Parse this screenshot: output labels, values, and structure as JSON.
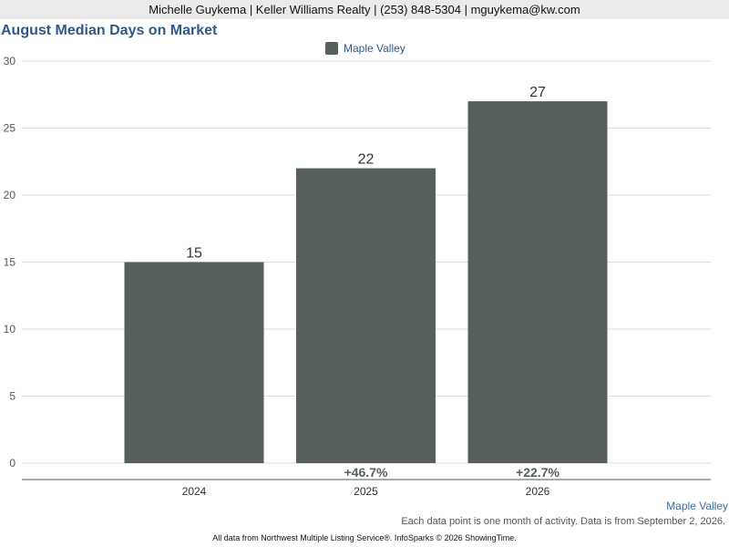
{
  "header": {
    "contact": "Michelle Guykema | Keller Williams Realty | (253) 848-5304 | mguykema@kw.com"
  },
  "chart_data": {
    "type": "bar",
    "title": "August Median Days on Market",
    "categories": [
      "2024",
      "2025",
      "2026"
    ],
    "series": [
      {
        "name": "Maple Valley",
        "values": [
          15,
          22,
          27
        ],
        "color": "#565f5c"
      }
    ],
    "changes": [
      "",
      "+46.7%",
      "+22.7%"
    ],
    "ylim": [
      0,
      30
    ],
    "yticks": [
      0,
      5,
      10,
      15,
      20,
      25,
      30
    ],
    "grid": true,
    "legend": "top-center",
    "xlabel": "",
    "ylabel": ""
  },
  "region_label": "Maple Valley",
  "note": "Each data point is one month of activity. Data is from September 2, 2026.",
  "footer": "All data from Northwest Multiple Listing Service®. InfoSparks © 2026 ShowingTime."
}
